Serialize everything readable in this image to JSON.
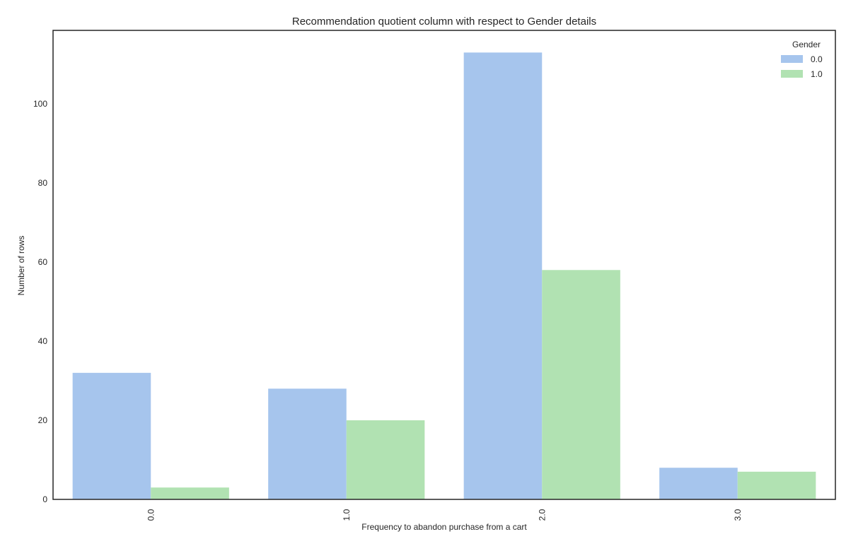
{
  "chart_data": {
    "type": "bar",
    "title": "Recommendation quotient column with respect to Gender details",
    "xlabel": "Frequency to abandon purchase from a cart",
    "ylabel": "Number of rows",
    "categories": [
      "0.0",
      "1.0",
      "2.0",
      "3.0"
    ],
    "series": [
      {
        "name": "0.0",
        "color": "#a6c5ed",
        "values": [
          32,
          28,
          113,
          8
        ]
      },
      {
        "name": "1.0",
        "color": "#b1e2b2",
        "values": [
          3,
          20,
          58,
          7
        ]
      }
    ],
    "ylim": [
      0,
      118.6
    ],
    "yticks": [
      0,
      20,
      40,
      60,
      80,
      100
    ],
    "ytick_labels": [
      "0",
      "20",
      "40",
      "60",
      "80",
      "100"
    ],
    "legend": {
      "title": "Gender",
      "position": "top-right"
    },
    "grid": false
  }
}
